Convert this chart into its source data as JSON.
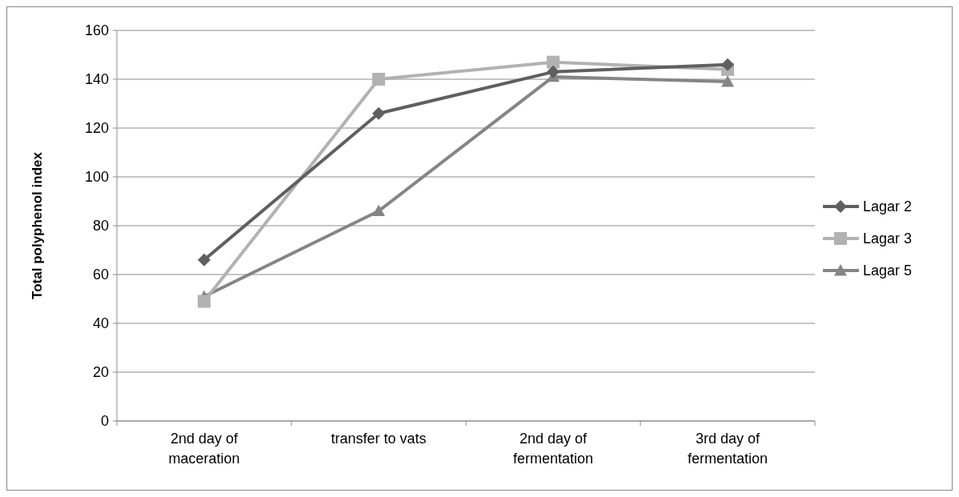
{
  "chart_data": {
    "type": "line",
    "ylabel": "Total polyphenol index",
    "categories": [
      "2nd day of maceration",
      "transfer to vats",
      "2nd day of fermentation",
      "3rd day of fermentation"
    ],
    "series": [
      {
        "name": "Lagar 2",
        "color": "#5f5f5f",
        "marker": "diamond",
        "values": [
          66,
          126,
          143,
          146
        ]
      },
      {
        "name": "Lagar 3",
        "color": "#b2b2b2",
        "marker": "square",
        "values": [
          49,
          140,
          147,
          144
        ]
      },
      {
        "name": "Lagar 5",
        "color": "#858585",
        "marker": "triangle",
        "values": [
          51,
          86,
          141,
          139
        ]
      }
    ],
    "ylim": [
      0,
      160
    ],
    "yticks": [
      0,
      20,
      40,
      60,
      80,
      100,
      120,
      140,
      160
    ],
    "grid": "y",
    "legend": "right"
  }
}
